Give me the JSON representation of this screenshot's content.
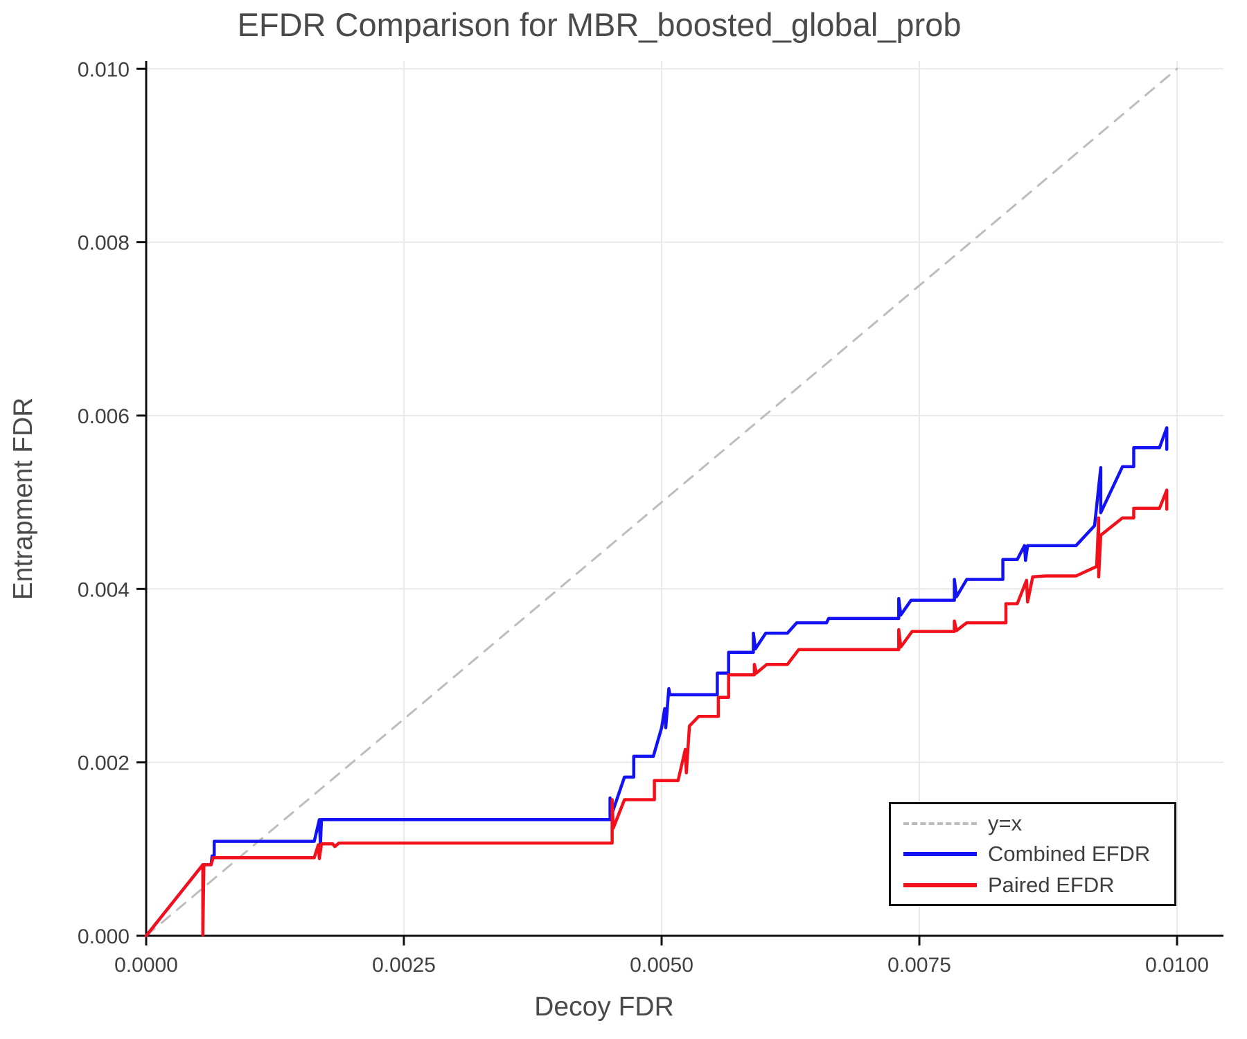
{
  "title": "EFDR Comparison for MBR_boosted_global_prob",
  "chart_data": {
    "type": "line",
    "title": "EFDR Comparison for MBR_boosted_global_prob",
    "xlabel": "Decoy FDR",
    "ylabel": "Entrapment FDR",
    "xlim": [
      0,
      0.01045
    ],
    "ylim": [
      0,
      0.01009
    ],
    "grid": true,
    "legend_position": "bottom-right",
    "colors": {
      "grid": "#e9e9e9",
      "axis": "#111111",
      "tick_text": "#404040",
      "identity_line": "#bdbdbd",
      "combined": "#1212f2",
      "paired": "#f2101a"
    },
    "x_ticks": [
      {
        "v": 0.0,
        "label": "0.0000"
      },
      {
        "v": 0.0025,
        "label": "0.0025"
      },
      {
        "v": 0.005,
        "label": "0.0050"
      },
      {
        "v": 0.0075,
        "label": "0.0075"
      },
      {
        "v": 0.01,
        "label": "0.0100"
      }
    ],
    "y_ticks": [
      {
        "v": 0.0,
        "label": "0.000"
      },
      {
        "v": 0.002,
        "label": "0.002"
      },
      {
        "v": 0.004,
        "label": "0.004"
      },
      {
        "v": 0.006,
        "label": "0.006"
      },
      {
        "v": 0.008,
        "label": "0.008"
      },
      {
        "v": 0.01,
        "label": "0.010"
      }
    ],
    "series": [
      {
        "name": "y=x",
        "color": "#bdbdbd",
        "style": "dashed",
        "width": 3,
        "points": [
          [
            0,
            0
          ],
          [
            0.01,
            0.01
          ]
        ]
      },
      {
        "name": "Combined EFDR",
        "color": "#1212f2",
        "style": "solid",
        "width": 4.5,
        "points": [
          [
            0.0,
            0.0
          ],
          [
            0.00055,
            0.00082
          ],
          [
            0.00063,
            0.00082
          ],
          [
            0.00064,
            0.00092
          ],
          [
            0.00066,
            0.00092
          ],
          [
            0.00066,
            0.00109
          ],
          [
            0.00163,
            0.00109
          ],
          [
            0.00168,
            0.00134
          ],
          [
            0.00169,
            0.00105
          ],
          [
            0.0017,
            0.00134
          ],
          [
            0.0045,
            0.00134
          ],
          [
            0.0045,
            0.00159
          ],
          [
            0.00451,
            0.00138
          ],
          [
            0.00464,
            0.00183
          ],
          [
            0.00473,
            0.00183
          ],
          [
            0.00473,
            0.00207
          ],
          [
            0.00492,
            0.00207
          ],
          [
            0.005,
            0.0024
          ],
          [
            0.00503,
            0.00262
          ],
          [
            0.00504,
            0.0024
          ],
          [
            0.00507,
            0.00285
          ],
          [
            0.00508,
            0.00278
          ],
          [
            0.00554,
            0.00278
          ],
          [
            0.00554,
            0.00303
          ],
          [
            0.00565,
            0.00303
          ],
          [
            0.00565,
            0.00327
          ],
          [
            0.00589,
            0.00327
          ],
          [
            0.00589,
            0.00349
          ],
          [
            0.00591,
            0.00331
          ],
          [
            0.00601,
            0.00349
          ],
          [
            0.00622,
            0.00349
          ],
          [
            0.00631,
            0.00361
          ],
          [
            0.0066,
            0.00361
          ],
          [
            0.00662,
            0.00366
          ],
          [
            0.0073,
            0.00366
          ],
          [
            0.0073,
            0.00389
          ],
          [
            0.00732,
            0.0037
          ],
          [
            0.00742,
            0.00387
          ],
          [
            0.00784,
            0.00387
          ],
          [
            0.00784,
            0.00411
          ],
          [
            0.00786,
            0.00391
          ],
          [
            0.00796,
            0.00411
          ],
          [
            0.00831,
            0.00411
          ],
          [
            0.00831,
            0.00434
          ],
          [
            0.00845,
            0.00434
          ],
          [
            0.00852,
            0.0045
          ],
          [
            0.00853,
            0.00433
          ],
          [
            0.00855,
            0.0045
          ],
          [
            0.00902,
            0.0045
          ],
          [
            0.0092,
            0.00473
          ],
          [
            0.00926,
            0.0054
          ],
          [
            0.00926,
            0.00488
          ],
          [
            0.00947,
            0.00541
          ],
          [
            0.00958,
            0.00541
          ],
          [
            0.00958,
            0.00563
          ],
          [
            0.00983,
            0.00563
          ],
          [
            0.0099,
            0.00586
          ],
          [
            0.0099,
            0.00561
          ]
        ]
      },
      {
        "name": "Paired EFDR",
        "color": "#f2101a",
        "style": "solid",
        "width": 4.5,
        "points": [
          [
            0.0,
            0.0
          ],
          [
            0.00055,
            0.00082
          ],
          [
            0.00055,
            1e-05
          ],
          [
            0.00056,
            0.00082
          ],
          [
            0.00063,
            0.00082
          ],
          [
            0.00065,
            0.0009
          ],
          [
            0.00163,
            0.0009
          ],
          [
            0.00167,
            0.00105
          ],
          [
            0.00168,
            0.00089
          ],
          [
            0.0017,
            0.00106
          ],
          [
            0.00181,
            0.00106
          ],
          [
            0.00183,
            0.00103
          ],
          [
            0.00187,
            0.00107
          ],
          [
            0.00452,
            0.00107
          ],
          [
            0.00452,
            0.00157
          ],
          [
            0.00453,
            0.00124
          ],
          [
            0.00464,
            0.00157
          ],
          [
            0.00493,
            0.00157
          ],
          [
            0.00493,
            0.00179
          ],
          [
            0.00516,
            0.00179
          ],
          [
            0.00523,
            0.00215
          ],
          [
            0.00524,
            0.00188
          ],
          [
            0.00527,
            0.00242
          ],
          [
            0.00536,
            0.00253
          ],
          [
            0.00555,
            0.00253
          ],
          [
            0.00555,
            0.00275
          ],
          [
            0.00565,
            0.00275
          ],
          [
            0.00565,
            0.00301
          ],
          [
            0.0059,
            0.00301
          ],
          [
            0.0059,
            0.00313
          ],
          [
            0.00592,
            0.00303
          ],
          [
            0.00602,
            0.00313
          ],
          [
            0.00622,
            0.00313
          ],
          [
            0.00633,
            0.0033
          ],
          [
            0.0073,
            0.0033
          ],
          [
            0.0073,
            0.00353
          ],
          [
            0.00732,
            0.00333
          ],
          [
            0.00743,
            0.00351
          ],
          [
            0.00784,
            0.00351
          ],
          [
            0.00784,
            0.00363
          ],
          [
            0.00786,
            0.00352
          ],
          [
            0.00796,
            0.00361
          ],
          [
            0.00834,
            0.00361
          ],
          [
            0.00834,
            0.00383
          ],
          [
            0.00845,
            0.00383
          ],
          [
            0.00854,
            0.0041
          ],
          [
            0.00855,
            0.00385
          ],
          [
            0.0086,
            0.00414
          ],
          [
            0.00873,
            0.00415
          ],
          [
            0.00902,
            0.00415
          ],
          [
            0.00922,
            0.00426
          ],
          [
            0.00924,
            0.00482
          ],
          [
            0.00924,
            0.00414
          ],
          [
            0.00926,
            0.00462
          ],
          [
            0.00947,
            0.00482
          ],
          [
            0.00958,
            0.00482
          ],
          [
            0.00958,
            0.00493
          ],
          [
            0.00983,
            0.00493
          ],
          [
            0.0099,
            0.00514
          ],
          [
            0.0099,
            0.00492
          ]
        ]
      }
    ]
  },
  "legend": {
    "items": [
      {
        "label": "y=x"
      },
      {
        "label": "Combined EFDR"
      },
      {
        "label": "Paired EFDR"
      }
    ]
  }
}
